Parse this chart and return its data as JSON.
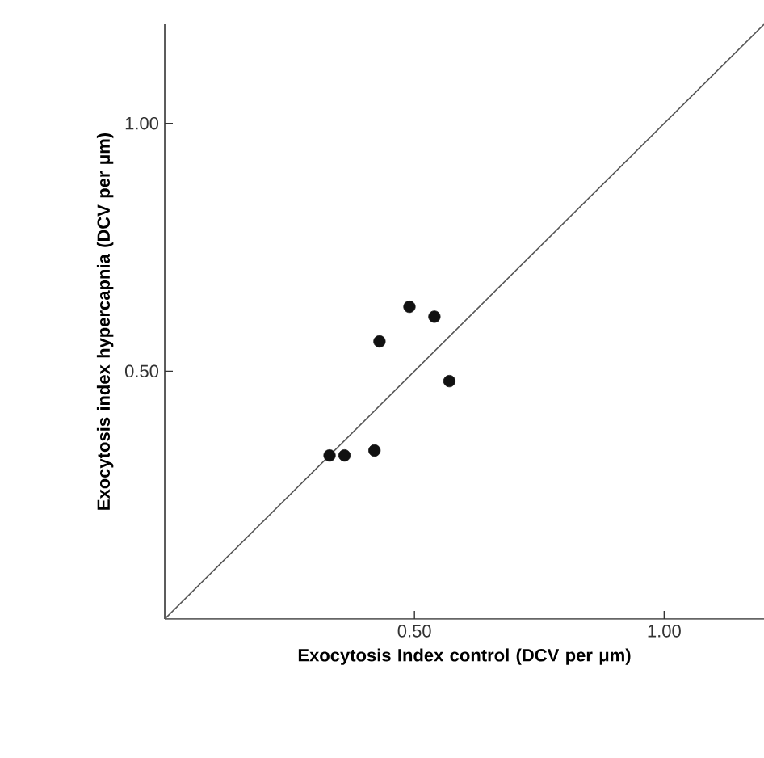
{
  "chart_data": {
    "type": "scatter",
    "xlabel": "Exocytosis Index control (DCV per μm)",
    "ylabel": "Exocytosis index hypercapnia (DCV per μm)",
    "xlim": [
      0,
      1.2
    ],
    "ylim": [
      0,
      1.2
    ],
    "xticks": [
      {
        "value": 0.5,
        "label": "0.50"
      },
      {
        "value": 1.0,
        "label": "1.00"
      }
    ],
    "yticks": [
      {
        "value": 0.5,
        "label": "0.50"
      },
      {
        "value": 1.0,
        "label": "1.00"
      }
    ],
    "series": [
      {
        "type": "line",
        "color": "#555555",
        "marker": "none",
        "x": [
          0,
          1.2
        ],
        "values": [
          0,
          1.2
        ]
      },
      {
        "color": "#111111",
        "marker": "circle",
        "x": [
          0.33,
          0.36,
          0.42,
          0.43,
          0.49,
          0.54,
          0.57
        ],
        "values": [
          0.33,
          0.33,
          0.34,
          0.56,
          0.63,
          0.61,
          0.48
        ]
      }
    ]
  }
}
